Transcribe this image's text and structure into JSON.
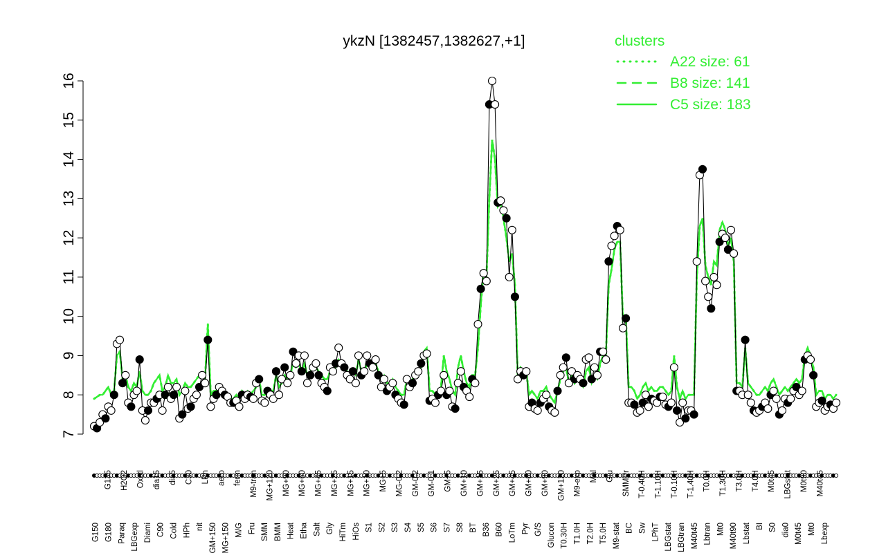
{
  "chart_data": {
    "type": "line",
    "title": "ykzN [1382457,1382627,+1]",
    "xlabel": "",
    "ylabel": "",
    "ylim": [
      7,
      16
    ],
    "yticks": [
      7,
      8,
      9,
      10,
      11,
      12,
      13,
      14,
      15,
      16
    ],
    "legend": {
      "title": "clusters",
      "position": "top-right",
      "entries": [
        {
          "label": "A22 size: 61",
          "style": "dotted"
        },
        {
          "label": "B8 size: 141",
          "style": "dashed"
        },
        {
          "label": "C5 size: 183",
          "style": "solid"
        }
      ]
    },
    "colors": {
      "accent": "#33ee33",
      "line": "#000000"
    },
    "x_tick_labels": [
      "G150",
      "G180",
      "Paraq",
      "LBGexp",
      "Diami",
      "C90",
      "Cold",
      "HPh",
      "nit",
      "GM+150",
      "MG+150",
      "M/G",
      "Fru",
      "SMM",
      "BMM",
      "Heat",
      "Etha",
      "Salt",
      "Gly",
      "HiTm",
      "HiOs",
      "S1",
      "S2",
      "S3",
      "S4",
      "S5",
      "S6",
      "S7",
      "S8",
      "BT",
      "B36",
      "B60",
      "LoTm",
      "Pyr",
      "G/S",
      "Glucon",
      "T0.30H",
      "T1.0H",
      "T2.0H",
      "T5.0H",
      "M9-stat",
      "BC",
      "Sw",
      "LPhT",
      "LBGstat",
      "LBGtran",
      "M40t45",
      "Lbtran",
      "Mt0",
      "M40t90",
      "Lbstat",
      "BI",
      "S0",
      "dia0",
      "M0t45",
      "Mt0",
      "Lbexp",
      "G135",
      "H2O2",
      "Oxctl",
      "dia15",
      "dia5",
      "C30",
      "LPh",
      "aero",
      "ferm",
      "M9-tran",
      "MG+120",
      "MG+90",
      "MG+60",
      "MG+45",
      "MG+25",
      "MG+15",
      "MG+10",
      "MG+5",
      "MG-0.2",
      "GM-0.2",
      "GM-0.1",
      "GM+5",
      "GM+10",
      "GM+15",
      "GM+25",
      "GM+45",
      "GM+60",
      "GM+90",
      "GM+120",
      "M9-exp",
      "Mal",
      "Glu",
      "SMMPr",
      "T-0.40H",
      "T-1.10H",
      "T-0.10H",
      "T-1.40H",
      "T0.0H",
      "T1.30H",
      "T3.0H",
      "T4.0H",
      "M0t45",
      "LBGstat",
      "M0t90",
      "M40t45"
    ],
    "series": [
      {
        "values": [
          7.2,
          7.15,
          7.3,
          7.5,
          7.4,
          7.7,
          7.6,
          8.0,
          9.3,
          9.4,
          8.3,
          8.5,
          7.8,
          7.7,
          8.0,
          8.1,
          8.9,
          7.6,
          7.35,
          7.6,
          7.8,
          7.8,
          7.9,
          8.0,
          7.6,
          8.0,
          8.2,
          7.9,
          8.0,
          8.2,
          7.4,
          7.5,
          8.1,
          7.65,
          7.7,
          7.9,
          8.0,
          8.2,
          8.5,
          8.3,
          9.4,
          7.7,
          7.9,
          8.0,
          8.2,
          8.1,
          8.0,
          7.95,
          7.8,
          7.8,
          7.85,
          7.7,
          8.0,
          7.9,
          8.0,
          7.95,
          7.9,
          8.3,
          8.4,
          7.85,
          7.8,
          8.1,
          8.0,
          7.9,
          8.6,
          8.0,
          8.4,
          8.7,
          8.3,
          8.5,
          9.1,
          8.8,
          9.0,
          8.6,
          9.0,
          8.3,
          8.5,
          8.7,
          8.8,
          8.5,
          8.3,
          8.2,
          8.1,
          8.7,
          8.6,
          8.8,
          9.2,
          8.8,
          8.7,
          8.5,
          8.4,
          8.6,
          8.3,
          9.0,
          8.5,
          8.6,
          9.0,
          8.8,
          8.7,
          8.9,
          8.5,
          8.2,
          8.4,
          8.1,
          8.2,
          8.3,
          8.0,
          7.9,
          7.8,
          7.75,
          8.4,
          8.2,
          8.3,
          8.5,
          8.6,
          8.8,
          9.0,
          9.05,
          7.85,
          7.9,
          7.8,
          8.0,
          8.1,
          8.5,
          8.0,
          8.1,
          7.7,
          7.65,
          8.3,
          8.6,
          8.2,
          8.1,
          7.95,
          8.4,
          8.3,
          9.8,
          10.7,
          11.1,
          10.9,
          15.4,
          16.0,
          15.4,
          12.9,
          12.95,
          12.7,
          12.5,
          11.0,
          12.2,
          10.5,
          8.4,
          8.6,
          8.5,
          8.6,
          7.7,
          7.8,
          7.65,
          7.6,
          7.8,
          7.9,
          8.0,
          7.7,
          7.6,
          7.55,
          8.1,
          8.5,
          8.7,
          8.95,
          8.3,
          8.6,
          8.4,
          8.5,
          8.4,
          8.3,
          8.9,
          8.95,
          8.4,
          8.7,
          8.5,
          9.1,
          9.1,
          8.9,
          11.4,
          11.8,
          12.05,
          12.3,
          12.2,
          9.7,
          9.95,
          7.8,
          7.8,
          7.75,
          7.55,
          7.6,
          7.8,
          8.0,
          7.7,
          7.9,
          7.85,
          7.8,
          7.95,
          7.95,
          7.75,
          7.7,
          7.8,
          8.7,
          7.6,
          7.3,
          7.8,
          7.4,
          7.6,
          7.6,
          7.5,
          11.4,
          13.6,
          13.75,
          10.9,
          10.5,
          10.2,
          11.0,
          10.8,
          11.9,
          12.1,
          12.0,
          11.7,
          12.2,
          11.6,
          8.1,
          8.1,
          8.0,
          9.4,
          8.0,
          7.8,
          7.6,
          7.55,
          7.6,
          7.7,
          7.8,
          7.65,
          8.0,
          8.1,
          7.9,
          7.5,
          7.6,
          7.9,
          7.8,
          7.9,
          8.1,
          8.2,
          8.0,
          8.1,
          8.9,
          9.0,
          8.9,
          8.5,
          7.7,
          7.8,
          7.85,
          7.6,
          7.7,
          7.75,
          7.65,
          7.8
        ]
      },
      {
        "name": "A22 size: 61",
        "values": [
          7.9,
          7.95,
          8.0,
          8.0,
          8.1,
          8.2,
          8.0,
          8.1,
          9.0,
          9.1,
          8.4,
          8.5,
          8.2,
          8.1,
          8.3,
          8.2,
          8.6,
          8.1,
          8.0,
          8.0,
          8.1,
          8.3,
          8.4,
          8.5,
          8.1,
          8.2,
          8.5,
          8.3,
          8.3,
          8.4,
          8.0,
          8.1,
          8.3,
          8.2,
          8.2,
          8.3,
          8.4,
          8.5,
          8.5,
          8.4,
          9.8,
          8.0,
          8.1,
          8.1,
          8.2,
          8.1,
          8.0,
          8.0,
          7.9,
          7.9,
          8.0,
          7.9,
          8.1,
          8.0,
          8.1,
          8.0,
          8.1,
          8.2,
          8.4,
          8.0,
          8.0,
          8.1,
          8.1,
          8.1,
          8.5,
          8.2,
          8.3,
          8.5,
          8.4,
          8.5,
          8.8,
          8.7,
          8.8,
          8.6,
          8.8,
          8.5,
          8.6,
          8.7,
          8.7,
          8.6,
          8.5,
          8.4,
          8.4,
          8.6,
          8.6,
          8.7,
          8.9,
          8.8,
          8.7,
          8.6,
          8.5,
          8.6,
          8.5,
          8.9,
          8.6,
          8.6,
          8.8,
          8.8,
          8.7,
          8.8,
          8.6,
          8.4,
          8.5,
          8.3,
          8.3,
          8.4,
          8.2,
          8.1,
          8.0,
          8.0,
          8.4,
          8.3,
          8.4,
          8.5,
          8.6,
          8.7,
          9.1,
          9.2,
          8.1,
          8.1,
          8.0,
          8.1,
          8.2,
          9.0,
          8.6,
          8.4,
          8.1,
          8.0,
          8.7,
          9.0,
          8.6,
          8.3,
          8.2,
          8.5,
          8.5,
          9.2,
          10.3,
          11.2,
          11.0,
          13.0,
          14.5,
          14.0,
          12.8,
          12.9,
          12.5,
          12.0,
          11.4,
          11.6,
          10.8,
          8.5,
          8.7,
          8.6,
          8.6,
          8.0,
          8.1,
          8.0,
          7.9,
          8.1,
          8.1,
          8.2,
          8.0,
          7.9,
          7.8,
          8.1,
          8.4,
          8.6,
          8.7,
          8.3,
          8.5,
          8.3,
          8.4,
          8.3,
          8.2,
          8.6,
          8.7,
          8.3,
          8.5,
          8.4,
          8.8,
          9.0,
          9.0,
          10.8,
          11.2,
          11.7,
          11.9,
          11.9,
          9.9,
          10.0,
          8.2,
          8.2,
          8.1,
          7.9,
          8.0,
          8.2,
          8.3,
          8.1,
          8.2,
          8.1,
          8.1,
          8.2,
          8.2,
          8.1,
          8.0,
          8.1,
          9.0,
          8.2,
          7.9,
          8.1,
          7.9,
          8.0,
          8.0,
          8.0,
          11.0,
          12.3,
          12.5,
          11.3,
          11.0,
          10.8,
          11.4,
          11.3,
          12.2,
          12.4,
          12.2,
          11.8,
          12.0,
          11.4,
          8.3,
          8.3,
          8.2,
          9.2,
          8.3,
          8.2,
          8.1,
          8.0,
          8.0,
          8.1,
          8.2,
          8.1,
          8.3,
          8.4,
          8.2,
          8.0,
          8.1,
          8.2,
          8.1,
          8.2,
          8.3,
          8.4,
          8.3,
          8.4,
          9.0,
          9.2,
          9.0,
          8.7,
          8.0,
          8.1,
          8.1,
          7.9,
          8.0,
          8.0,
          7.9,
          8.0
        ]
      },
      {
        "name": "B8 size: 141",
        "values": [
          7.9,
          7.95,
          8.0,
          8.0,
          8.1,
          8.2,
          8.0,
          8.1,
          9.0,
          9.1,
          8.4,
          8.5,
          8.2,
          8.1,
          8.3,
          8.2,
          8.6,
          8.1,
          8.0,
          8.0,
          8.1,
          8.3,
          8.4,
          8.5,
          8.1,
          8.2,
          8.5,
          8.3,
          8.3,
          8.4,
          8.0,
          8.1,
          8.3,
          8.2,
          8.2,
          8.3,
          8.4,
          8.5,
          8.5,
          8.4,
          9.8,
          8.0,
          8.1,
          8.1,
          8.2,
          8.1,
          8.0,
          8.0,
          7.9,
          7.9,
          8.0,
          7.9,
          8.1,
          8.0,
          8.1,
          8.0,
          8.1,
          8.2,
          8.4,
          8.0,
          8.0,
          8.1,
          8.1,
          8.1,
          8.5,
          8.2,
          8.3,
          8.5,
          8.4,
          8.5,
          8.8,
          8.7,
          8.8,
          8.6,
          8.8,
          8.5,
          8.6,
          8.7,
          8.7,
          8.6,
          8.5,
          8.4,
          8.4,
          8.6,
          8.6,
          8.7,
          8.9,
          8.8,
          8.7,
          8.6,
          8.5,
          8.6,
          8.5,
          8.9,
          8.6,
          8.6,
          8.8,
          8.8,
          8.7,
          8.8,
          8.6,
          8.4,
          8.5,
          8.3,
          8.3,
          8.4,
          8.2,
          8.1,
          8.0,
          8.0,
          8.4,
          8.3,
          8.4,
          8.5,
          8.6,
          8.7,
          9.1,
          9.2,
          8.1,
          8.1,
          8.0,
          8.1,
          8.2,
          9.0,
          8.6,
          8.4,
          8.1,
          8.0,
          8.7,
          9.0,
          8.6,
          8.3,
          8.2,
          8.5,
          8.5,
          9.2,
          10.3,
          11.2,
          11.0,
          13.0,
          14.5,
          14.0,
          12.8,
          12.9,
          12.5,
          12.0,
          11.4,
          11.6,
          10.8,
          8.5,
          8.7,
          8.6,
          8.6,
          8.0,
          8.1,
          8.0,
          7.9,
          8.1,
          8.1,
          8.2,
          8.0,
          7.9,
          7.8,
          8.1,
          8.4,
          8.6,
          8.7,
          8.3,
          8.5,
          8.3,
          8.4,
          8.3,
          8.2,
          8.6,
          8.7,
          8.3,
          8.5,
          8.4,
          8.8,
          9.0,
          9.0,
          10.8,
          11.2,
          11.7,
          11.9,
          11.9,
          9.9,
          10.0,
          8.2,
          8.2,
          8.1,
          7.9,
          8.0,
          8.2,
          8.3,
          8.1,
          8.2,
          8.1,
          8.1,
          8.2,
          8.2,
          8.1,
          8.0,
          8.1,
          9.0,
          8.2,
          7.9,
          8.1,
          7.9,
          8.0,
          8.0,
          8.0,
          11.0,
          12.3,
          12.5,
          11.3,
          11.0,
          10.8,
          11.4,
          11.3,
          12.2,
          12.4,
          12.2,
          11.8,
          12.0,
          11.4,
          8.3,
          8.3,
          8.2,
          9.2,
          8.3,
          8.2,
          8.1,
          8.0,
          8.0,
          8.1,
          8.2,
          8.1,
          8.3,
          8.4,
          8.2,
          8.0,
          8.1,
          8.2,
          8.1,
          8.2,
          8.3,
          8.4,
          8.3,
          8.4,
          9.0,
          9.2,
          9.0,
          8.7,
          8.0,
          8.1,
          8.1,
          7.9,
          8.0,
          8.0,
          7.9,
          8.0
        ]
      },
      {
        "name": "C5 size: 183",
        "values": [
          7.9,
          7.95,
          8.0,
          8.0,
          8.1,
          8.2,
          8.0,
          8.1,
          9.0,
          9.1,
          8.4,
          8.5,
          8.2,
          8.1,
          8.3,
          8.2,
          8.6,
          8.1,
          8.0,
          8.0,
          8.1,
          8.3,
          8.4,
          8.5,
          8.1,
          8.2,
          8.5,
          8.3,
          8.3,
          8.4,
          8.0,
          8.1,
          8.3,
          8.2,
          8.2,
          8.3,
          8.4,
          8.5,
          8.5,
          8.4,
          9.8,
          8.0,
          8.1,
          8.1,
          8.2,
          8.1,
          8.0,
          8.0,
          7.9,
          7.9,
          8.0,
          7.9,
          8.1,
          8.0,
          8.1,
          8.0,
          8.1,
          8.2,
          8.4,
          8.0,
          8.0,
          8.1,
          8.1,
          8.1,
          8.5,
          8.2,
          8.3,
          8.5,
          8.4,
          8.5,
          8.8,
          8.7,
          8.8,
          8.6,
          8.8,
          8.5,
          8.6,
          8.7,
          8.7,
          8.6,
          8.5,
          8.4,
          8.4,
          8.6,
          8.6,
          8.7,
          8.9,
          8.8,
          8.7,
          8.6,
          8.5,
          8.6,
          8.5,
          8.9,
          8.6,
          8.6,
          8.8,
          8.8,
          8.7,
          8.8,
          8.6,
          8.4,
          8.5,
          8.3,
          8.3,
          8.4,
          8.2,
          8.1,
          8.0,
          8.0,
          8.4,
          8.3,
          8.4,
          8.5,
          8.6,
          8.7,
          9.1,
          9.2,
          8.1,
          8.1,
          8.0,
          8.1,
          8.2,
          9.0,
          8.6,
          8.4,
          8.1,
          8.0,
          8.7,
          9.0,
          8.6,
          8.3,
          8.2,
          8.5,
          8.5,
          9.2,
          10.3,
          11.2,
          11.0,
          13.0,
          14.5,
          14.0,
          12.8,
          12.9,
          12.5,
          12.0,
          11.4,
          11.6,
          10.8,
          8.5,
          8.7,
          8.6,
          8.6,
          8.0,
          8.1,
          8.0,
          7.9,
          8.1,
          8.1,
          8.2,
          8.0,
          7.9,
          7.8,
          8.1,
          8.4,
          8.6,
          8.7,
          8.3,
          8.5,
          8.3,
          8.4,
          8.3,
          8.2,
          8.6,
          8.7,
          8.3,
          8.5,
          8.4,
          8.8,
          9.0,
          9.0,
          10.8,
          11.2,
          11.7,
          11.9,
          11.9,
          9.9,
          10.0,
          8.2,
          8.2,
          8.1,
          7.9,
          8.0,
          8.2,
          8.3,
          8.1,
          8.2,
          8.1,
          8.1,
          8.2,
          8.2,
          8.1,
          8.0,
          8.1,
          9.0,
          8.2,
          7.9,
          8.1,
          7.9,
          8.0,
          8.0,
          8.0,
          11.0,
          12.3,
          12.5,
          11.3,
          11.0,
          10.8,
          11.4,
          11.3,
          12.2,
          12.4,
          12.2,
          11.8,
          12.0,
          11.4,
          8.3,
          8.3,
          8.2,
          9.2,
          8.3,
          8.2,
          8.1,
          8.0,
          8.0,
          8.1,
          8.2,
          8.1,
          8.3,
          8.4,
          8.2,
          8.0,
          8.1,
          8.2,
          8.1,
          8.2,
          8.3,
          8.4,
          8.3,
          8.4,
          9.0,
          9.2,
          9.0,
          8.7,
          8.0,
          8.1,
          8.1,
          7.9,
          8.0,
          8.0,
          7.9,
          8.0
        ]
      }
    ]
  }
}
